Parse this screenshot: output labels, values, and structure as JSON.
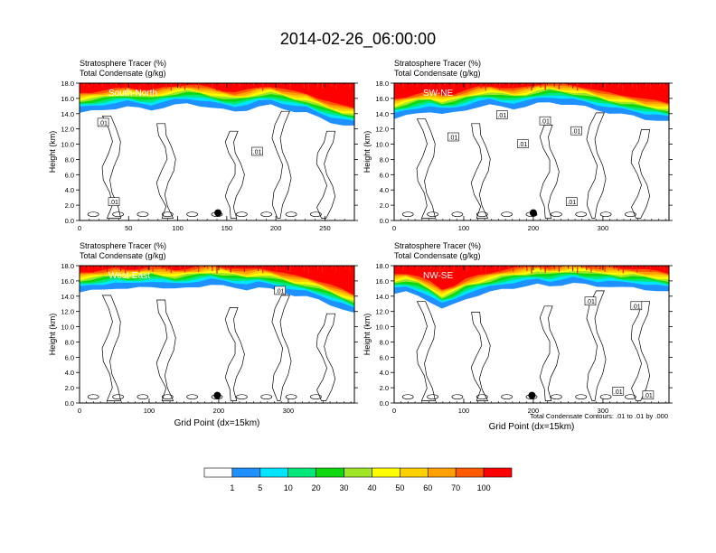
{
  "title": "2014-02-26_06:00:00",
  "chart_data": [
    {
      "type": "heatmap",
      "panel_label": "South-North",
      "title_line1": "Stratosphere Tracer   (%)",
      "title_line2": "Total Condensate   (g/kg)",
      "ylabel": "Height (km)",
      "xlabel": "",
      "xlim": [
        0,
        280
      ],
      "ylim": [
        0,
        18
      ],
      "xticks": [
        0,
        50,
        100,
        150,
        200,
        250
      ],
      "yticks": [
        "0.0",
        "2.0",
        "4.0",
        "6.0",
        "8.0",
        "10.0",
        "12.0",
        "14.0",
        "16.0",
        "18.0"
      ],
      "marker_point": {
        "x": 141,
        "y": 1.0
      },
      "tracer_front_height_km": [
        14.8,
        15.0,
        15.2,
        15.4,
        15.6,
        15.4,
        15.2,
        15.5,
        15.8,
        16.0,
        15.8,
        15.5,
        15.2,
        15.0,
        15.2,
        15.6,
        15.8,
        15.4,
        15.0,
        14.8,
        14.2,
        13.6,
        13.2,
        13.0
      ],
      "contour_labels": [
        {
          "text": ".01",
          "x": 24,
          "y": 12.8
        },
        {
          "text": ".01",
          "x": 35,
          "y": 2.4
        },
        {
          "text": ".01",
          "x": 181,
          "y": 9.0
        }
      ]
    },
    {
      "type": "heatmap",
      "panel_label": "SW-NE",
      "title_line1": "Stratosphere Tracer   (%)",
      "title_line2": "Total Condensate   (g/kg)",
      "ylabel": "Height (km)",
      "xlabel": "",
      "xlim": [
        0,
        395
      ],
      "ylim": [
        0,
        18
      ],
      "xticks": [
        0,
        100,
        200,
        300
      ],
      "yticks": [
        "0.0",
        "2.0",
        "4.0",
        "6.0",
        "8.0",
        "10.0",
        "12.0",
        "14.0",
        "16.0",
        "18.0"
      ],
      "marker_point": {
        "x": 200,
        "y": 1.0
      },
      "tracer_front_height_km": [
        14.0,
        14.4,
        14.8,
        15.0,
        14.6,
        14.8,
        15.2,
        15.6,
        15.8,
        15.6,
        15.4,
        15.6,
        16.0,
        16.2,
        16.0,
        15.8,
        15.6,
        15.2,
        14.8,
        14.6,
        14.4,
        14.0,
        13.8,
        13.6
      ],
      "contour_labels": [
        {
          "text": ".01",
          "x": 85,
          "y": 10.9
        },
        {
          "text": ".01",
          "x": 185,
          "y": 10.0
        },
        {
          "text": ".01",
          "x": 155,
          "y": 13.8
        },
        {
          "text": ".01",
          "x": 217,
          "y": 13.0
        },
        {
          "text": ".01",
          "x": 262,
          "y": 11.7
        },
        {
          "text": ".01",
          "x": 255,
          "y": 2.4
        }
      ]
    },
    {
      "type": "heatmap",
      "panel_label": "West-East",
      "title_line1": "Stratosphere Tracer   (%)",
      "title_line2": "Total Condensate   (g/kg)",
      "ylabel": "Height (km)",
      "xlabel": "Grid Point (dx=15km)",
      "xlim": [
        0,
        395
      ],
      "ylim": [
        0,
        18
      ],
      "xticks": [
        0,
        100,
        200,
        300
      ],
      "yticks": [
        "0.0",
        "2.0",
        "4.0",
        "6.0",
        "8.0",
        "10.0",
        "12.0",
        "14.0",
        "16.0",
        "18.0"
      ],
      "marker_point": {
        "x": 198,
        "y": 1.0
      },
      "tracer_front_height_km": [
        15.2,
        15.4,
        15.6,
        15.8,
        15.6,
        15.8,
        16.0,
        15.8,
        15.6,
        15.8,
        16.0,
        16.2,
        16.0,
        15.8,
        15.6,
        15.8,
        15.6,
        15.2,
        14.8,
        14.6,
        14.2,
        13.6,
        13.0,
        12.4
      ],
      "contour_labels": [
        {
          "text": ".01",
          "x": 288,
          "y": 14.7
        }
      ]
    },
    {
      "type": "heatmap",
      "panel_label": "NW-SE",
      "title_line1": "Stratosphere Tracer   (%)",
      "title_line2": "Total Condensate   (g/kg)",
      "ylabel": "Height (km)",
      "xlabel": "Grid Point (dx=15km)",
      "xlim": [
        0,
        395
      ],
      "ylim": [
        0,
        18
      ],
      "xticks": [
        0,
        100,
        200,
        300
      ],
      "yticks": [
        "0.0",
        "2.0",
        "4.0",
        "6.0",
        "8.0",
        "10.0",
        "12.0",
        "14.0",
        "16.0",
        "18.0"
      ],
      "marker_point": {
        "x": 198,
        "y": 1.0
      },
      "tracer_front_height_km": [
        15.0,
        15.2,
        14.8,
        14.0,
        13.0,
        13.6,
        14.4,
        14.8,
        15.2,
        15.6,
        15.8,
        16.0,
        16.2,
        16.0,
        16.2,
        16.4,
        16.2,
        16.0,
        16.0,
        15.8,
        15.8,
        15.6,
        15.4,
        15.2
      ],
      "contour_labels": [
        {
          "text": ".01",
          "x": 282,
          "y": 13.3
        },
        {
          "text": ".01",
          "x": 348,
          "y": 12.7
        },
        {
          "text": ".01",
          "x": 322,
          "y": 1.5
        },
        {
          "text": ".01",
          "x": 365,
          "y": 1.0
        }
      ],
      "footnote": "Total Condensate Contours: .01 to .01 by .000"
    }
  ],
  "colorbar": {
    "labels": [
      "1",
      "5",
      "10",
      "20",
      "30",
      "40",
      "50",
      "60",
      "70",
      "100"
    ],
    "colors": [
      "#ffffff",
      "#1e90ff",
      "#00e5ff",
      "#00e87a",
      "#10d810",
      "#a0e628",
      "#ffff00",
      "#ffd000",
      "#ffa000",
      "#ff5a00",
      "#ff0000"
    ]
  }
}
